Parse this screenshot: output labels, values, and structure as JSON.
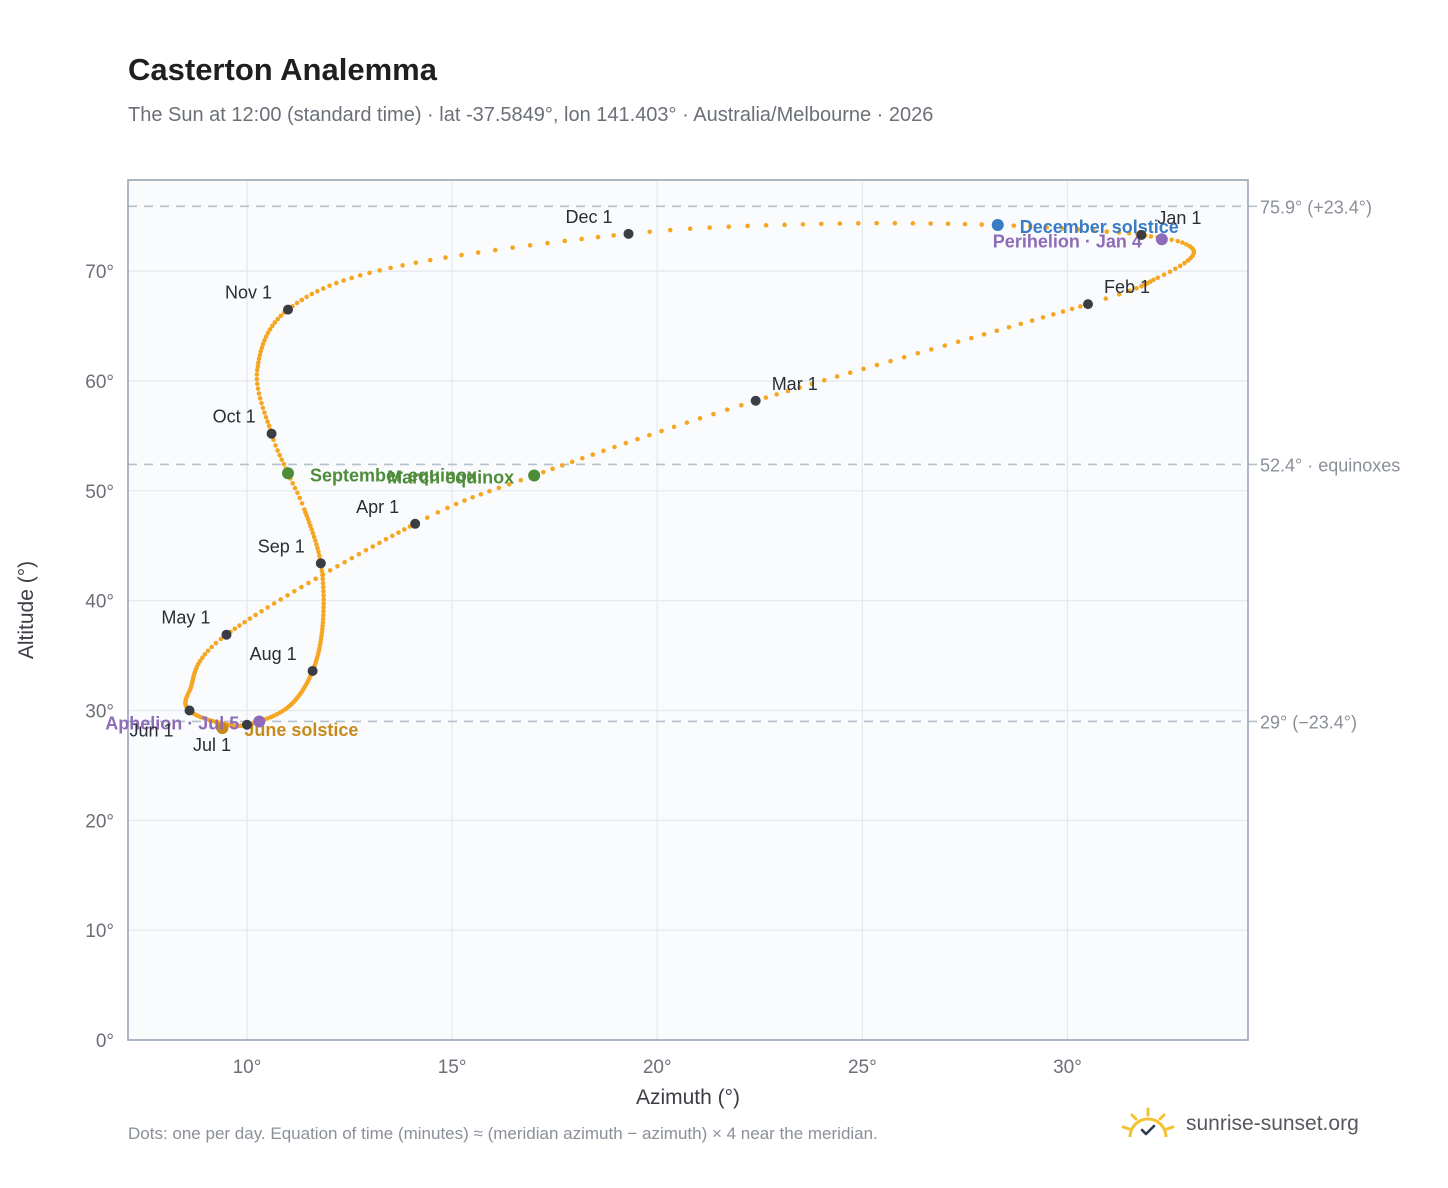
{
  "title": "Casterton Analemma",
  "subtitle": "The Sun at 12:00 (standard time) · lat -37.5849°, lon 141.403° · Australia/Melbourne · 2026",
  "footnote": "Dots: one per day. Equation of time (minutes) ≈ (meridian azimuth − azimuth) × 4 near the meridian.",
  "brand": {
    "name": "sunrise-sunset.org",
    "icon": "sun-check-icon"
  },
  "colors": {
    "curve": "#f5a623",
    "month_marker": "#3a3d44",
    "december_solstice": "#3a7bc8",
    "june_solstice": "#c88a1a",
    "equinox": "#4e8c3a",
    "apsis": "#8e6bb8",
    "plot_bg": "#f9fbfd",
    "grid": "#e3e8ee",
    "reference_line": "#b4c0cc"
  },
  "chart_data": {
    "type": "scatter",
    "xlabel": "Azimuth (°)",
    "ylabel": "Altitude (°)",
    "xlim": [
      7.1,
      34.4
    ],
    "ylim": [
      0,
      78.3
    ],
    "xticks": [
      10,
      15,
      20,
      25,
      30
    ],
    "yticks": [
      0,
      10,
      20,
      30,
      40,
      50,
      60,
      70
    ],
    "xtick_labels": [
      "10°",
      "15°",
      "20°",
      "25°",
      "30°"
    ],
    "ytick_labels": [
      "0°",
      "10°",
      "20°",
      "30°",
      "40°",
      "50°",
      "60°",
      "70°"
    ],
    "grid": true,
    "reference_lines": [
      {
        "y": 75.9,
        "label": "75.9° (+23.4°)"
      },
      {
        "y": 52.4,
        "label": "52.4° · equinoxes"
      },
      {
        "y": 29.0,
        "label": "29° (−23.4°)"
      }
    ],
    "path_keypoints": [
      {
        "day": 1,
        "azimuth": 31.8,
        "altitude": 73.3
      },
      {
        "day": 8,
        "azimuth": 32.8,
        "altitude": 72.6
      },
      {
        "day": 14,
        "azimuth": 33.05,
        "altitude": 71.4
      },
      {
        "day": 22,
        "azimuth": 32.2,
        "altitude": 69.4
      },
      {
        "day": 32,
        "azimuth": 30.5,
        "altitude": 67.0
      },
      {
        "day": 60,
        "azimuth": 22.4,
        "altitude": 58.2
      },
      {
        "day": 79,
        "azimuth": 17.0,
        "altitude": 51.4
      },
      {
        "day": 91,
        "azimuth": 14.1,
        "altitude": 47.0
      },
      {
        "day": 121,
        "azimuth": 9.5,
        "altitude": 36.9
      },
      {
        "day": 140,
        "azimuth": 8.6,
        "altitude": 31.8
      },
      {
        "day": 152,
        "azimuth": 8.6,
        "altitude": 30.0
      },
      {
        "day": 163,
        "azimuth": 9.3,
        "altitude": 28.9
      },
      {
        "day": 182,
        "azimuth": 10.0,
        "altitude": 28.7
      },
      {
        "day": 196,
        "azimuth": 11.0,
        "altitude": 30.3
      },
      {
        "day": 213,
        "azimuth": 11.6,
        "altitude": 33.6
      },
      {
        "day": 229,
        "azimuth": 11.85,
        "altitude": 38.0
      },
      {
        "day": 244,
        "azimuth": 11.8,
        "altitude": 43.4
      },
      {
        "day": 259,
        "azimuth": 11.4,
        "altitude": 48.3
      },
      {
        "day": 266,
        "azimuth": 11.0,
        "altitude": 51.6
      },
      {
        "day": 274,
        "azimuth": 10.6,
        "altitude": 55.2
      },
      {
        "day": 288,
        "azimuth": 10.25,
        "altitude": 61.0
      },
      {
        "day": 305,
        "azimuth": 11.0,
        "altitude": 66.5
      },
      {
        "day": 320,
        "azimuth": 13.5,
        "altitude": 70.3
      },
      {
        "day": 335,
        "azimuth": 19.3,
        "altitude": 73.4
      },
      {
        "day": 345,
        "azimuth": 24.0,
        "altitude": 74.3
      },
      {
        "day": 355,
        "azimuth": 28.3,
        "altitude": 74.2
      },
      {
        "day": 365,
        "azimuth": 31.7,
        "altitude": 73.4
      }
    ],
    "month_markers": [
      {
        "label": "Jan 1",
        "azimuth": 31.8,
        "altitude": 73.3,
        "anchor": "right"
      },
      {
        "label": "Feb 1",
        "azimuth": 30.5,
        "altitude": 67.0,
        "anchor": "right"
      },
      {
        "label": "Mar 1",
        "azimuth": 22.4,
        "altitude": 58.2,
        "anchor": "right"
      },
      {
        "label": "Apr 1",
        "azimuth": 14.1,
        "altitude": 47.0,
        "anchor": "left"
      },
      {
        "label": "May 1",
        "azimuth": 9.5,
        "altitude": 36.9,
        "anchor": "left"
      },
      {
        "label": "Jun 1",
        "azimuth": 8.6,
        "altitude": 30.0,
        "anchor": "below-left"
      },
      {
        "label": "Jul 1",
        "azimuth": 10.0,
        "altitude": 28.7,
        "anchor": "below-left"
      },
      {
        "label": "Aug 1",
        "azimuth": 11.6,
        "altitude": 33.6,
        "anchor": "left"
      },
      {
        "label": "Sep 1",
        "azimuth": 11.8,
        "altitude": 43.4,
        "anchor": "left"
      },
      {
        "label": "Oct 1",
        "azimuth": 10.6,
        "altitude": 55.2,
        "anchor": "left"
      },
      {
        "label": "Nov 1",
        "azimuth": 11.0,
        "altitude": 66.5,
        "anchor": "left"
      },
      {
        "label": "Dec 1",
        "azimuth": 19.3,
        "altitude": 73.4,
        "anchor": "left"
      }
    ],
    "events": [
      {
        "label": "December solstice",
        "azimuth": 28.3,
        "altitude": 74.2,
        "color_key": "december_solstice",
        "anchor": "right"
      },
      {
        "label": "Perihelion · Jan 4",
        "azimuth": 32.3,
        "altitude": 72.9,
        "color_key": "apsis",
        "anchor": "left"
      },
      {
        "label": "March equinox",
        "azimuth": 17.0,
        "altitude": 51.4,
        "color_key": "equinox",
        "anchor": "left"
      },
      {
        "label": "September equinox",
        "azimuth": 11.0,
        "altitude": 51.6,
        "color_key": "equinox",
        "anchor": "right"
      },
      {
        "label": "June solstice",
        "azimuth": 9.4,
        "altitude": 28.4,
        "color_key": "june_solstice",
        "anchor": "right"
      },
      {
        "label": "Aphelion · Jul 5",
        "azimuth": 10.3,
        "altitude": 29.0,
        "color_key": "apsis",
        "anchor": "left"
      }
    ]
  }
}
